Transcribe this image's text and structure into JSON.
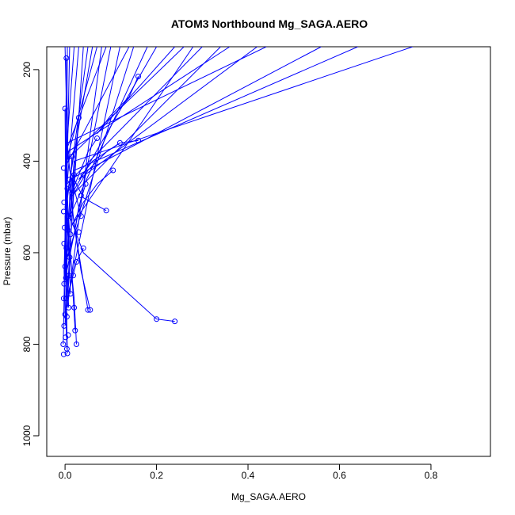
{
  "chart_data": {
    "type": "line",
    "title": "ATOM3 Northbound Mg_SAGA.AERO",
    "xlabel": "Mg_SAGA.AERO",
    "ylabel": "Pressure (mbar)",
    "xlim": [
      -0.04,
      0.93
    ],
    "ylim": [
      1045,
      150
    ],
    "y_reversed": true,
    "x_ticks": [
      0.0,
      0.2,
      0.4,
      0.6,
      0.8
    ],
    "x_tick_labels": [
      "0.0",
      "0.2",
      "0.4",
      "0.6",
      "0.8"
    ],
    "y_ticks": [
      200,
      400,
      600,
      800,
      1000
    ],
    "y_tick_labels": [
      "200",
      "400",
      "600",
      "800",
      "1000"
    ],
    "series_color": "#0000ff",
    "grid": false,
    "legend": "none",
    "profiles": [
      {
        "x": [
          0.24,
          0.2,
          0.04,
          0.01,
          0.02,
          0.76
        ],
        "y": [
          750,
          745,
          600,
          520,
          400,
          150
        ]
      },
      {
        "x": [
          0.05,
          0.03,
          0.01,
          0.02,
          0.64
        ],
        "y": [
          725,
          600,
          470,
          420,
          150
        ]
      },
      {
        "x": [
          0.055,
          0.035,
          0.02,
          0.01,
          0.56
        ],
        "y": [
          725,
          640,
          540,
          440,
          150
        ]
      },
      {
        "x": [
          0.09,
          0.04,
          0.01,
          0.005,
          0.44
        ],
        "y": [
          508,
          480,
          420,
          360,
          150
        ]
      },
      {
        "x": [
          0.16,
          0.12,
          0.06,
          0.03,
          0.42
        ],
        "y": [
          355,
          360,
          400,
          440,
          150
        ]
      },
      {
        "x": [
          0.12,
          0.09,
          0.05,
          0.02,
          0.34
        ],
        "y": [
          360,
          380,
          420,
          470,
          150
        ]
      },
      {
        "x": [
          0.105,
          0.07,
          0.04,
          0.015,
          0.28
        ],
        "y": [
          420,
          450,
          490,
          540,
          150
        ]
      },
      {
        "x": [
          0.16,
          0.14,
          0.1,
          0.07,
          0.24
        ],
        "y": [
          215,
          260,
          300,
          340,
          150
        ]
      },
      {
        "x": [
          0.07,
          0.05,
          0.03,
          0.01,
          0.2
        ],
        "y": [
          350,
          380,
          430,
          480,
          150
        ]
      },
      {
        "x": [
          0.045,
          0.03,
          0.02,
          0.005,
          0.15
        ],
        "y": [
          450,
          500,
          560,
          610,
          150
        ]
      },
      {
        "x": [
          0.04,
          0.025,
          0.015,
          0.005,
          0.12
        ],
        "y": [
          590,
          620,
          660,
          700,
          150
        ]
      },
      {
        "x": [
          0.03,
          0.02,
          0.01,
          0.0,
          0.1
        ],
        "y": [
          305,
          420,
          540,
          660,
          150
        ]
      },
      {
        "x": [
          0.02,
          0.015,
          0.01,
          0.005,
          0.08
        ],
        "y": [
          430,
          520,
          620,
          720,
          150
        ]
      },
      {
        "x": [
          0.025,
          0.02,
          0.01,
          0.0,
          0.06
        ],
        "y": [
          800,
          700,
          600,
          500,
          150
        ]
      },
      {
        "x": [
          0.015,
          0.01,
          0.005,
          0.0,
          0.04
        ],
        "y": [
          390,
          480,
          600,
          760,
          150
        ]
      },
      {
        "x": [
          0.005,
          0.003,
          0.002,
          0.0,
          0.02
        ],
        "y": [
          820,
          700,
          560,
          420,
          150
        ]
      },
      {
        "x": [
          0.003,
          0.002,
          0.001,
          0.0,
          0.01
        ],
        "y": [
          175,
          300,
          480,
          650,
          150
        ]
      },
      {
        "x": [
          0.0,
          0.001,
          0.002,
          0.003,
          0.005
        ],
        "y": [
          285,
          420,
          600,
          780,
          150
        ]
      },
      {
        "x": [
          -0.002,
          0.0,
          0.002,
          0.004,
          0.0
        ],
        "y": [
          668,
          560,
          440,
          320,
          150
        ]
      },
      {
        "x": [
          0.022,
          0.015,
          0.008,
          0.004,
          0.3
        ],
        "y": [
          770,
          650,
          540,
          450,
          150
        ]
      },
      {
        "x": [
          0.01,
          0.006,
          0.003,
          0.001,
          0.26
        ],
        "y": [
          610,
          540,
          470,
          400,
          150
        ]
      },
      {
        "x": [
          0.035,
          0.025,
          0.012,
          0.005,
          0.36
        ],
        "y": [
          520,
          480,
          430,
          380,
          150
        ]
      },
      {
        "x": [
          0.008,
          0.005,
          0.003,
          0.001,
          0.18
        ],
        "y": [
          720,
          660,
          600,
          540,
          150
        ]
      },
      {
        "x": [
          0.012,
          0.008,
          0.004,
          0.002,
          0.14
        ],
        "y": [
          690,
          600,
          500,
          410,
          150
        ]
      },
      {
        "x": [
          0.0,
          -0.002,
          0.001,
          0.003,
          0.07
        ],
        "y": [
          735,
          640,
          520,
          400,
          150
        ]
      },
      {
        "x": [
          0.004,
          0.002,
          0.001,
          0.0,
          0.05
        ],
        "y": [
          810,
          720,
          620,
          520,
          150
        ]
      },
      {
        "x": [
          -0.004,
          -0.002,
          0.0,
          0.002,
          0.03
        ],
        "y": [
          800,
          700,
          580,
          480,
          150
        ]
      },
      {
        "x": [
          0.006,
          0.004,
          0.002,
          0.001,
          0.09
        ],
        "y": [
          550,
          500,
          440,
          380,
          150
        ]
      }
    ],
    "markers": [
      {
        "x": 0.24,
        "y": 750
      },
      {
        "x": 0.2,
        "y": 745
      },
      {
        "x": 0.05,
        "y": 725
      },
      {
        "x": 0.055,
        "y": 725
      },
      {
        "x": 0.09,
        "y": 508
      },
      {
        "x": 0.16,
        "y": 355
      },
      {
        "x": 0.12,
        "y": 360
      },
      {
        "x": 0.105,
        "y": 420
      },
      {
        "x": 0.16,
        "y": 215
      },
      {
        "x": 0.07,
        "y": 350
      },
      {
        "x": 0.045,
        "y": 450
      },
      {
        "x": 0.04,
        "y": 590
      },
      {
        "x": 0.03,
        "y": 305
      },
      {
        "x": 0.02,
        "y": 430
      },
      {
        "x": 0.025,
        "y": 800
      },
      {
        "x": 0.015,
        "y": 390
      },
      {
        "x": 0.005,
        "y": 820
      },
      {
        "x": 0.003,
        "y": 175
      },
      {
        "x": 0.0,
        "y": 285
      },
      {
        "x": -0.002,
        "y": 668
      },
      {
        "x": 0.022,
        "y": 770
      },
      {
        "x": 0.01,
        "y": 610
      },
      {
        "x": 0.035,
        "y": 520
      },
      {
        "x": 0.008,
        "y": 720
      },
      {
        "x": 0.012,
        "y": 690
      },
      {
        "x": 0.0,
        "y": 735
      },
      {
        "x": 0.004,
        "y": 810
      },
      {
        "x": -0.004,
        "y": 800
      },
      {
        "x": 0.006,
        "y": 550
      },
      {
        "x": -0.003,
        "y": 415
      },
      {
        "x": -0.002,
        "y": 490
      },
      {
        "x": -0.003,
        "y": 510
      },
      {
        "x": -0.001,
        "y": 545
      },
      {
        "x": -0.002,
        "y": 580
      },
      {
        "x": 0.0,
        "y": 630
      },
      {
        "x": -0.003,
        "y": 700
      },
      {
        "x": -0.002,
        "y": 760
      },
      {
        "x": 0.001,
        "y": 785
      },
      {
        "x": -0.003,
        "y": 822
      },
      {
        "x": 0.002,
        "y": 655
      },
      {
        "x": 0.008,
        "y": 520
      },
      {
        "x": 0.01,
        "y": 440
      },
      {
        "x": 0.012,
        "y": 560
      },
      {
        "x": 0.018,
        "y": 650
      },
      {
        "x": 0.02,
        "y": 720
      },
      {
        "x": 0.005,
        "y": 460
      },
      {
        "x": 0.003,
        "y": 590
      },
      {
        "x": 0.015,
        "y": 470
      },
      {
        "x": 0.025,
        "y": 620
      },
      {
        "x": 0.03,
        "y": 555
      },
      {
        "x": 0.035,
        "y": 475
      },
      {
        "x": 0.04,
        "y": 430
      },
      {
        "x": 0.007,
        "y": 780
      },
      {
        "x": 0.004,
        "y": 740
      },
      {
        "x": 0.002,
        "y": 700
      },
      {
        "x": 0.009,
        "y": 650
      }
    ]
  }
}
